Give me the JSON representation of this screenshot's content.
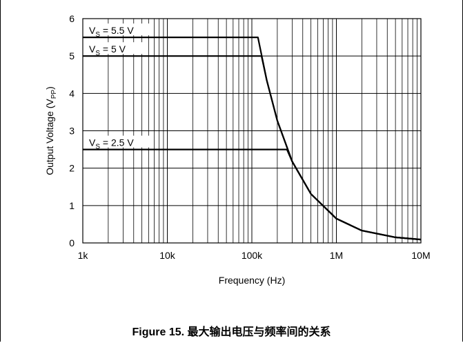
{
  "chart_data": {
    "type": "line",
    "title": "",
    "xlabel": "Frequency (Hz)",
    "ylabel": "Output Voltage (V",
    "ylabel_sub": "PP",
    "ylabel_close": ")",
    "x_scale": "log",
    "xlim": [
      1000,
      10000000
    ],
    "ylim": [
      0,
      6
    ],
    "grid": true,
    "x_ticks": [
      {
        "value": 1000,
        "label": "1k"
      },
      {
        "value": 10000,
        "label": "10k"
      },
      {
        "value": 100000,
        "label": "100k"
      },
      {
        "value": 1000000,
        "label": "1M"
      },
      {
        "value": 10000000,
        "label": "10M"
      }
    ],
    "y_ticks": [
      {
        "value": 0,
        "label": "0"
      },
      {
        "value": 1,
        "label": "1"
      },
      {
        "value": 2,
        "label": "2"
      },
      {
        "value": 3,
        "label": "3"
      },
      {
        "value": 4,
        "label": "4"
      },
      {
        "value": 5,
        "label": "5"
      },
      {
        "value": 6,
        "label": "6"
      }
    ],
    "series": [
      {
        "label_main": "V",
        "label_sub": "S",
        "label_rest": " = 5.5 V",
        "x": [
          1000,
          118000,
          150000,
          200000,
          300000,
          500000,
          1000000,
          2000000,
          5000000,
          10000000
        ],
        "y": [
          5.5,
          5.5,
          4.35,
          3.27,
          2.18,
          1.31,
          0.65,
          0.33,
          0.15,
          0.09
        ]
      },
      {
        "label_main": "V",
        "label_sub": "S",
        "label_rest": " = 5 V",
        "x": [
          1000,
          130000,
          150000,
          200000,
          300000,
          500000,
          1000000,
          2000000,
          5000000,
          10000000
        ],
        "y": [
          5.0,
          5.0,
          4.35,
          3.27,
          2.18,
          1.31,
          0.65,
          0.33,
          0.15,
          0.09
        ]
      },
      {
        "label_main": "V",
        "label_sub": "S",
        "label_rest": " = 2.5 V",
        "x": [
          1000,
          260000,
          300000,
          500000,
          1000000,
          2000000,
          5000000,
          10000000
        ],
        "y": [
          2.5,
          2.5,
          2.18,
          1.31,
          0.65,
          0.33,
          0.15,
          0.09
        ]
      }
    ]
  },
  "caption": "Figure 15. 最大输出电压与频率间的关系"
}
